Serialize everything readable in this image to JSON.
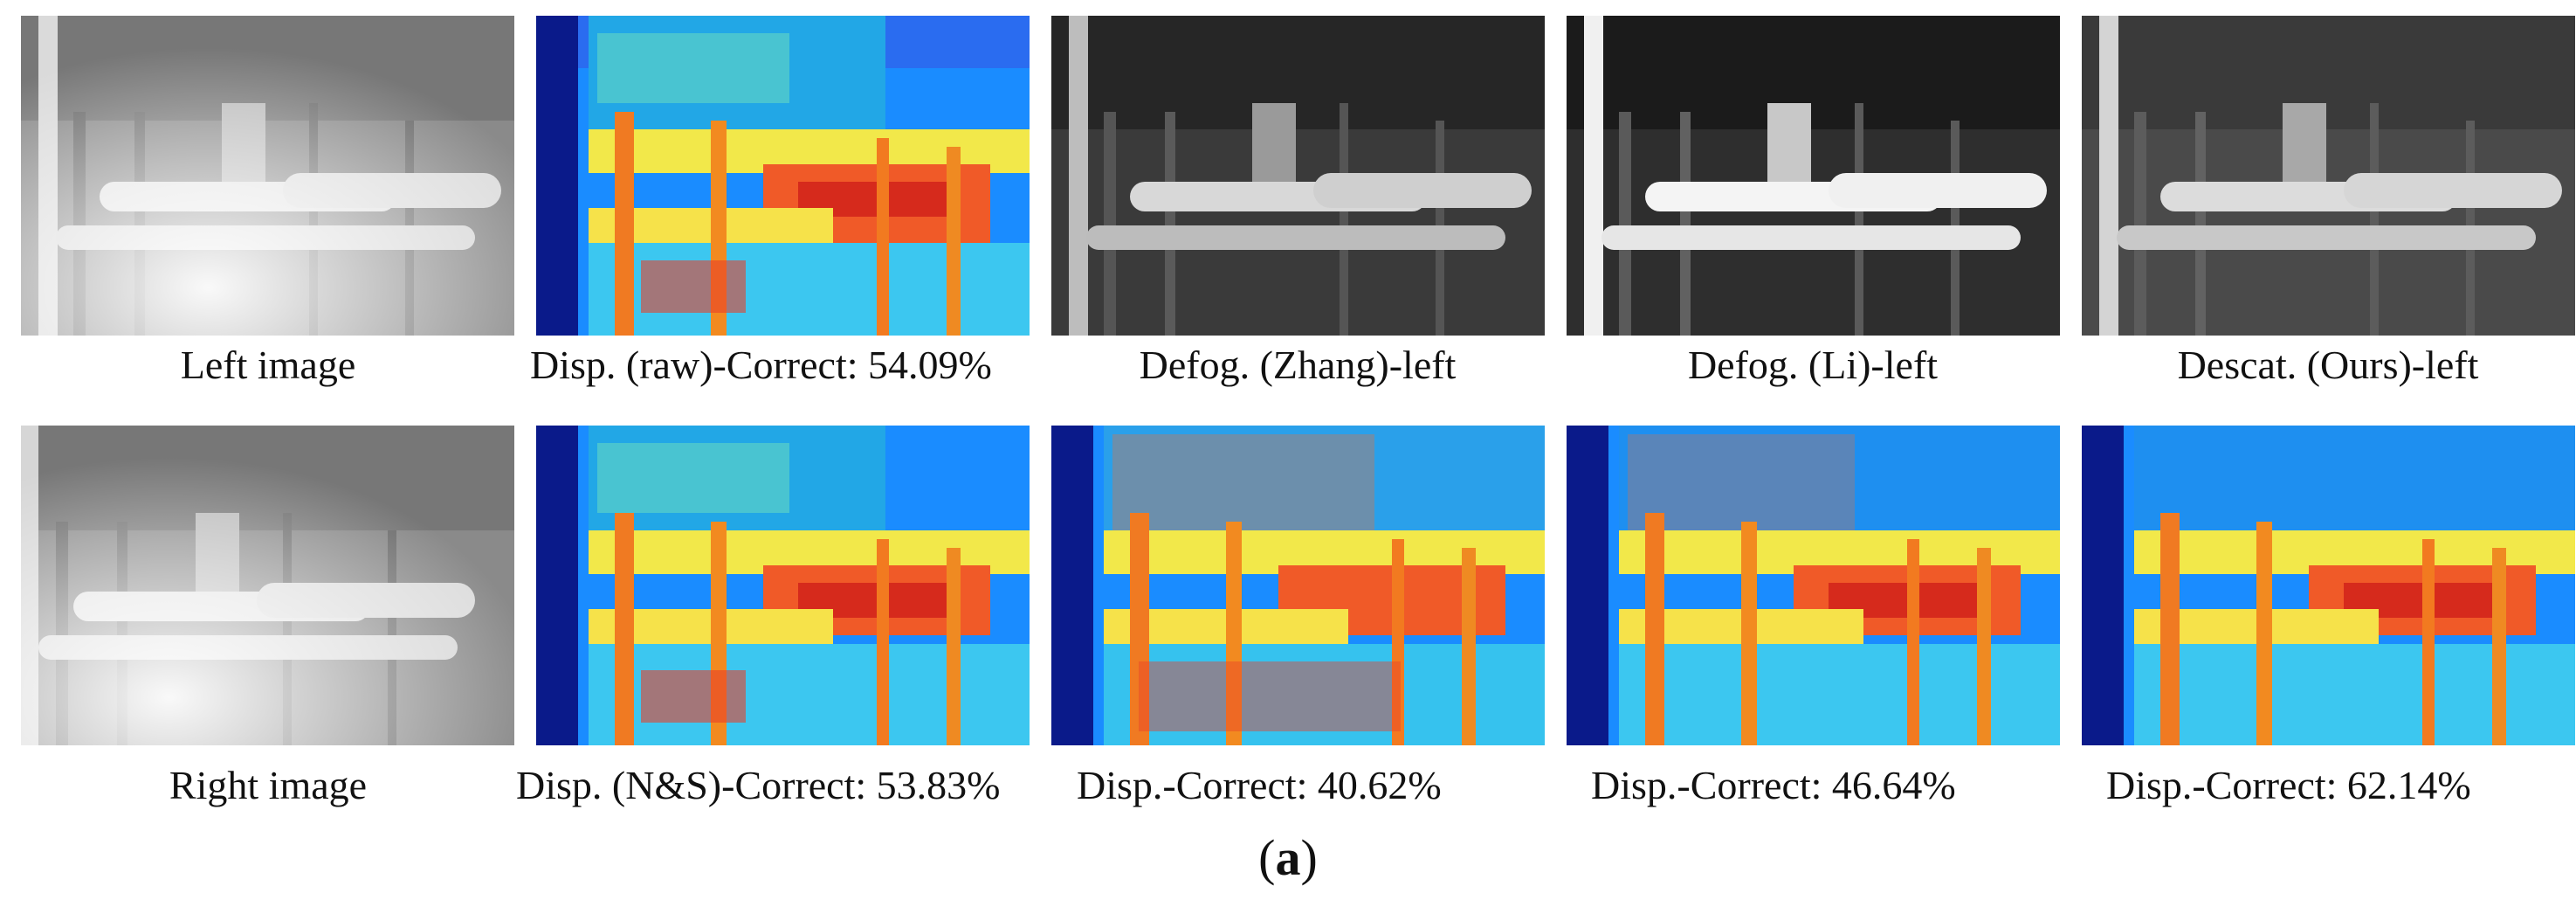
{
  "figure": {
    "panel_label_open": "(",
    "panel_label_letter": "a",
    "panel_label_close": ")",
    "rows": [
      {
        "tiles": [
          {
            "kind": "photo-hazy",
            "caption": "Left image"
          },
          {
            "kind": "disparity",
            "caption": "Disp. (raw)-Correct: 54.09%"
          },
          {
            "kind": "photo-dark",
            "caption": "Defog. (Zhang)-left"
          },
          {
            "kind": "photo-contrast",
            "caption": "Defog. (Li)-left"
          },
          {
            "kind": "photo-clear",
            "caption": "Descat. (Ours)-left"
          }
        ]
      },
      {
        "tiles": [
          {
            "kind": "photo-hazy",
            "caption": "Right image"
          },
          {
            "kind": "disparity",
            "caption": "Disp. (N&S)-Correct: 53.83%"
          },
          {
            "kind": "disparity",
            "caption": "Disp.-Correct: 40.62%"
          },
          {
            "kind": "disparity",
            "caption": "Disp.-Correct: 46.64%"
          },
          {
            "kind": "disparity",
            "caption": "Disp.-Correct: 62.14%"
          }
        ]
      }
    ]
  }
}
